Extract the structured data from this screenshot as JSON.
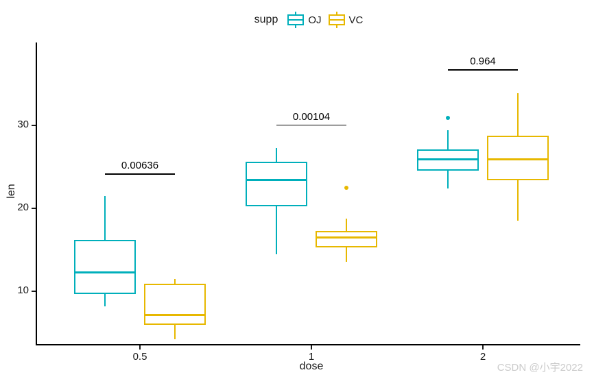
{
  "watermark": "CSDN @小宇2022",
  "colors": {
    "oj": "#00AFBB",
    "vc": "#E7B800",
    "axis": "#000000",
    "text": "#1a1a1a",
    "watermark": "#cbcbcb"
  },
  "legend": {
    "title": "supp",
    "items": [
      {
        "label": "OJ",
        "color": "#00AFBB"
      },
      {
        "label": "VC",
        "color": "#E7B800"
      }
    ]
  },
  "chart_data": {
    "type": "boxplot",
    "title": "",
    "xlabel": "dose",
    "ylabel": "len",
    "categories": [
      "0.5",
      "1",
      "2"
    ],
    "yticks": [
      10,
      20,
      30
    ],
    "ylim": [
      3.7,
      40
    ],
    "grid": false,
    "legend_position": "top",
    "series": [
      {
        "name": "OJ",
        "color": "#00AFBB",
        "boxes": [
          {
            "dose": "0.5",
            "whisker_low": 8.2,
            "q1": 9.7,
            "median": 12.25,
            "q3": 16.18,
            "whisker_high": 21.5,
            "outliers": []
          },
          {
            "dose": "1",
            "whisker_low": 14.5,
            "q1": 20.3,
            "median": 23.45,
            "q3": 25.65,
            "whisker_high": 27.3,
            "outliers": []
          },
          {
            "dose": "2",
            "whisker_low": 22.4,
            "q1": 24.58,
            "median": 25.95,
            "q3": 27.08,
            "whisker_high": 29.4,
            "outliers": [
              30.9
            ]
          }
        ]
      },
      {
        "name": "VC",
        "color": "#E7B800",
        "boxes": [
          {
            "dose": "0.5",
            "whisker_low": 4.2,
            "q1": 5.95,
            "median": 7.15,
            "q3": 10.9,
            "whisker_high": 11.5,
            "outliers": []
          },
          {
            "dose": "1",
            "whisker_low": 13.6,
            "q1": 15.28,
            "median": 16.5,
            "q3": 17.3,
            "whisker_high": 18.8,
            "outliers": [
              22.5
            ]
          },
          {
            "dose": "2",
            "whisker_low": 18.5,
            "q1": 23.38,
            "median": 25.95,
            "q3": 28.8,
            "whisker_high": 33.9,
            "outliers": []
          }
        ]
      }
    ],
    "annotations": [
      {
        "label": "0.00636",
        "group": "0.5",
        "y": 24.2
      },
      {
        "label": "0.00104",
        "group": "1",
        "y": 30.1
      },
      {
        "label": "0.964",
        "group": "2",
        "y": 36.75
      }
    ]
  }
}
